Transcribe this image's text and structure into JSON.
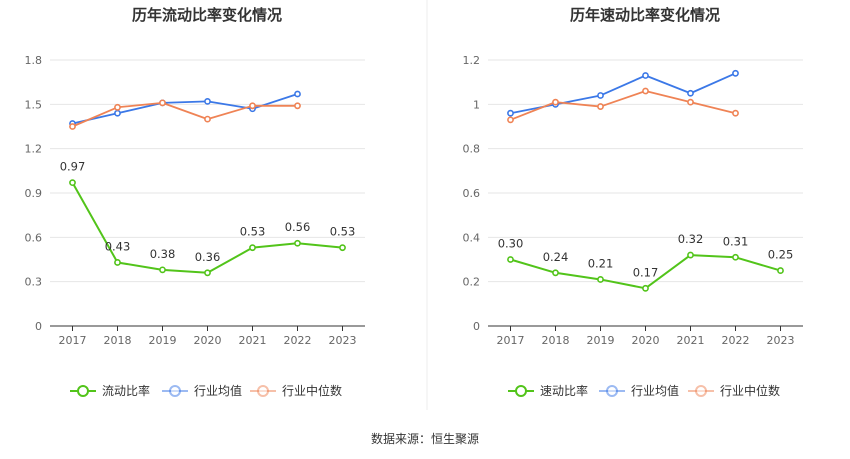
{
  "source": "数据来源：恒生聚源",
  "colors": {
    "primary": "#52c41a",
    "industry_avg": "#3b78e7",
    "industry_median": "#ef8355",
    "grid": "#e6e6e6",
    "axis": "#333333"
  },
  "chart_data": [
    {
      "type": "line",
      "title": "历年流动比率变化情况",
      "x": [
        "2017",
        "2018",
        "2019",
        "2020",
        "2021",
        "2022",
        "2023"
      ],
      "ylim": [
        0,
        1.8
      ],
      "yticks": [
        "0",
        "0.3",
        "0.6",
        "0.9",
        "1.2",
        "1.5",
        "1.8"
      ],
      "grid": true,
      "legend_position": "bottom",
      "series": [
        {
          "name": "流动比率",
          "values": [
            0.97,
            0.43,
            0.38,
            0.36,
            0.53,
            0.56,
            0.53
          ],
          "labels": [
            "0.97",
            "0.43",
            "0.38",
            "0.36",
            "0.53",
            "0.56",
            "0.53"
          ]
        },
        {
          "name": "行业均值",
          "values": [
            1.37,
            1.44,
            1.51,
            1.52,
            1.47,
            1.57,
            null
          ]
        },
        {
          "name": "行业中位数",
          "values": [
            1.35,
            1.48,
            1.51,
            1.4,
            1.49,
            1.49,
            null
          ]
        }
      ]
    },
    {
      "type": "line",
      "title": "历年速动比率变化情况",
      "x": [
        "2017",
        "2018",
        "2019",
        "2020",
        "2021",
        "2022",
        "2023"
      ],
      "ylim": [
        0,
        1.2
      ],
      "yticks": [
        "0",
        "0.2",
        "0.4",
        "0.6",
        "0.8",
        "1",
        "1.2"
      ],
      "grid": true,
      "legend_position": "bottom",
      "series": [
        {
          "name": "速动比率",
          "values": [
            0.3,
            0.24,
            0.21,
            0.17,
            0.32,
            0.31,
            0.25
          ],
          "labels": [
            "0.30",
            "0.24",
            "0.21",
            "0.17",
            "0.32",
            "0.31",
            "0.25"
          ]
        },
        {
          "name": "行业均值",
          "values": [
            0.96,
            1.0,
            1.04,
            1.13,
            1.05,
            1.14,
            null
          ]
        },
        {
          "name": "行业中位数",
          "values": [
            0.93,
            1.01,
            0.99,
            1.06,
            1.01,
            0.96,
            null
          ]
        }
      ]
    }
  ]
}
